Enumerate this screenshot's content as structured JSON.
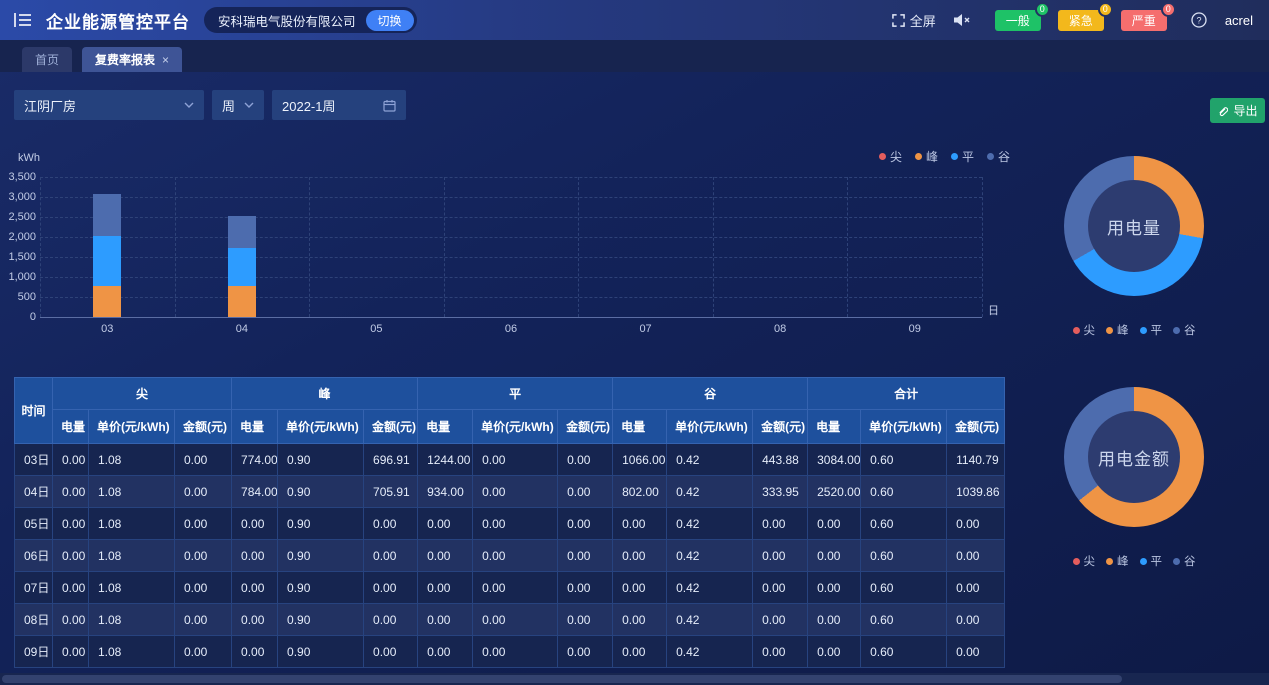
{
  "header": {
    "title": "企业能源管控平台",
    "company": "安科瑞电气股份有限公司",
    "switch_label": "切换",
    "fullscreen_label": "全屏",
    "alarms": [
      {
        "label": "一般",
        "count": "0",
        "color": "#1ec267"
      },
      {
        "label": "紧急",
        "count": "0",
        "color": "#f3b81c"
      },
      {
        "label": "严重",
        "count": "0",
        "color": "#f56e6e"
      }
    ],
    "username": "acrel"
  },
  "tabs": [
    {
      "label": "首页",
      "active": false
    },
    {
      "label": "复费率报表",
      "active": true,
      "close_label": "×"
    }
  ],
  "filters": {
    "site": "江阴厂房",
    "period": "周",
    "date": "2022-1周",
    "export_label": "导出"
  },
  "legend": [
    "尖",
    "峰",
    "平",
    "谷"
  ],
  "colors": {
    "尖": "#e45d5d",
    "峰": "#ef9445",
    "平": "#2d9cff",
    "谷": "#4d6cae",
    "export_green": "#21a36b"
  },
  "chart_data": [
    {
      "type": "bar",
      "stacked": true,
      "ylabel": "kWh",
      "xlabel": "日",
      "ylim": [
        0,
        3500
      ],
      "ytick_step": 500,
      "grid": true,
      "legend_position": "top-right",
      "categories": [
        "03",
        "04",
        "05",
        "06",
        "07",
        "08",
        "09"
      ],
      "series": [
        {
          "name": "尖",
          "values": [
            0,
            0,
            0,
            0,
            0,
            0,
            0
          ]
        },
        {
          "name": "峰",
          "values": [
            774,
            784,
            0,
            0,
            0,
            0,
            0
          ]
        },
        {
          "name": "平",
          "values": [
            1244,
            934,
            0,
            0,
            0,
            0,
            0
          ]
        },
        {
          "name": "谷",
          "values": [
            1066,
            802,
            0,
            0,
            0,
            0,
            0
          ]
        }
      ]
    },
    {
      "type": "pie",
      "title": "用电量",
      "slices": [
        {
          "name": "尖",
          "value": 0
        },
        {
          "name": "峰",
          "value": 1558
        },
        {
          "name": "平",
          "value": 2178
        },
        {
          "name": "谷",
          "value": 1868
        }
      ]
    },
    {
      "type": "pie",
      "title": "用电金额",
      "slices": [
        {
          "name": "尖",
          "value": 0
        },
        {
          "name": "峰",
          "value": 1402.82
        },
        {
          "name": "平",
          "value": 0
        },
        {
          "name": "谷",
          "value": 777.83
        }
      ]
    }
  ],
  "table": {
    "time_header": "时间",
    "groups": [
      "尖",
      "峰",
      "平",
      "谷",
      "合计"
    ],
    "sub_headers": [
      "电量",
      "单价(元/kWh)",
      "金额(元)"
    ],
    "rows": [
      {
        "time": "03日",
        "values": [
          "0.00",
          "1.08",
          "0.00",
          "774.00",
          "0.90",
          "696.91",
          "1244.00",
          "0.00",
          "0.00",
          "1066.00",
          "0.42",
          "443.88",
          "3084.00",
          "0.60",
          "1140.79"
        ]
      },
      {
        "time": "04日",
        "values": [
          "0.00",
          "1.08",
          "0.00",
          "784.00",
          "0.90",
          "705.91",
          "934.00",
          "0.00",
          "0.00",
          "802.00",
          "0.42",
          "333.95",
          "2520.00",
          "0.60",
          "1039.86"
        ]
      },
      {
        "time": "05日",
        "values": [
          "0.00",
          "1.08",
          "0.00",
          "0.00",
          "0.90",
          "0.00",
          "0.00",
          "0.00",
          "0.00",
          "0.00",
          "0.42",
          "0.00",
          "0.00",
          "0.60",
          "0.00"
        ]
      },
      {
        "time": "06日",
        "values": [
          "0.00",
          "1.08",
          "0.00",
          "0.00",
          "0.90",
          "0.00",
          "0.00",
          "0.00",
          "0.00",
          "0.00",
          "0.42",
          "0.00",
          "0.00",
          "0.60",
          "0.00"
        ]
      },
      {
        "time": "07日",
        "values": [
          "0.00",
          "1.08",
          "0.00",
          "0.00",
          "0.90",
          "0.00",
          "0.00",
          "0.00",
          "0.00",
          "0.00",
          "0.42",
          "0.00",
          "0.00",
          "0.60",
          "0.00"
        ]
      },
      {
        "time": "08日",
        "values": [
          "0.00",
          "1.08",
          "0.00",
          "0.00",
          "0.90",
          "0.00",
          "0.00",
          "0.00",
          "0.00",
          "0.00",
          "0.42",
          "0.00",
          "0.00",
          "0.60",
          "0.00"
        ]
      },
      {
        "time": "09日",
        "values": [
          "0.00",
          "1.08",
          "0.00",
          "0.00",
          "0.90",
          "0.00",
          "0.00",
          "0.00",
          "0.00",
          "0.00",
          "0.42",
          "0.00",
          "0.00",
          "0.60",
          "0.00"
        ]
      }
    ]
  }
}
